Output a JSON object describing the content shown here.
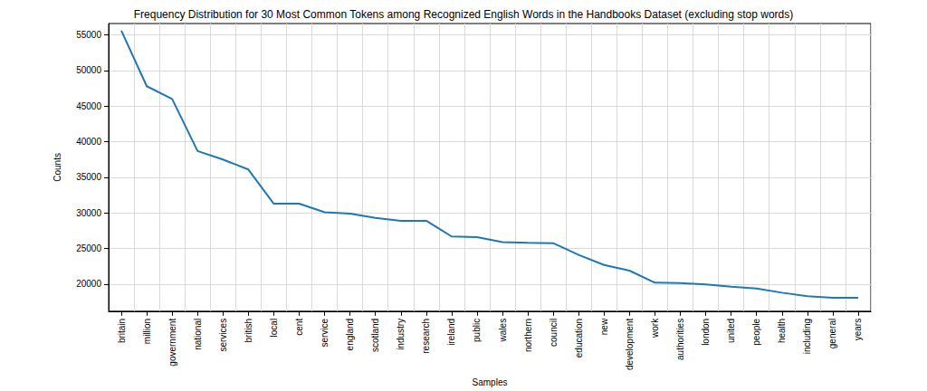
{
  "chart_data": {
    "type": "line",
    "title": "Frequency Distribution for 30 Most Common Tokens among Recognized English Words in the Handbooks Dataset (excluding stop words)",
    "x_label": "Samples",
    "y_label": "Counts",
    "categories": [
      "britain",
      "million",
      "government",
      "national",
      "services",
      "british",
      "local",
      "cent",
      "service",
      "england",
      "scotland",
      "industry",
      "research",
      "ireland",
      "public",
      "wales",
      "northern",
      "council",
      "education",
      "new",
      "development",
      "work",
      "authorities",
      "london",
      "united",
      "people",
      "health",
      "including",
      "general",
      "years"
    ],
    "values": [
      55600,
      47800,
      46000,
      38700,
      37500,
      36100,
      31300,
      31300,
      30100,
      29900,
      29300,
      28900,
      28900,
      26700,
      26600,
      25900,
      25800,
      25750,
      24100,
      22700,
      21900,
      20200,
      20150,
      19950,
      19650,
      19400,
      18800,
      18300,
      18100,
      18100
    ],
    "color": "#1f77b4",
    "ylim": [
      16200,
      56600
    ],
    "yticks": [
      20000,
      25000,
      30000,
      35000,
      40000,
      45000,
      50000,
      55000
    ],
    "grid": true
  }
}
